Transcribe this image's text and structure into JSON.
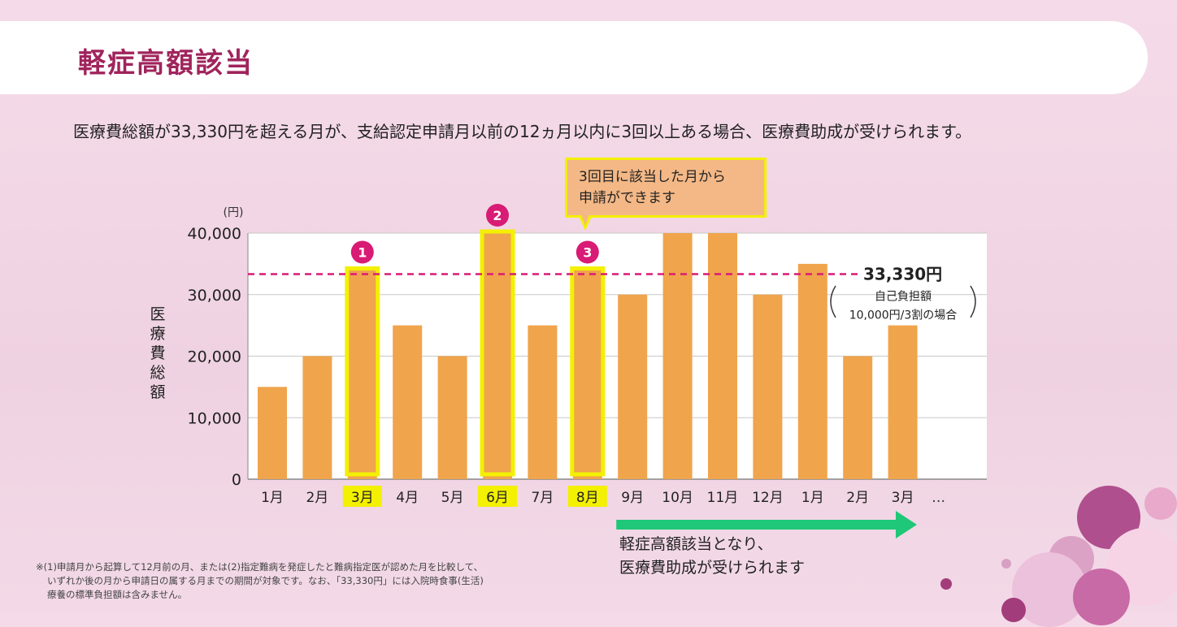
{
  "header": {
    "title": "軽症高額該当"
  },
  "description": "医療費総額が33,330円を超える月が、支給認定申請月以前の12ヵ月以内に3回以上ある場合、医療費助成が受けられます。",
  "callout": {
    "line1": "3回目に該当した月から",
    "line2": "申請ができます"
  },
  "arrow_caption": {
    "line1": "軽症高額該当となり、",
    "line2": "医療費助成が受けられます"
  },
  "footnote": {
    "line1": "※(1)申請月から起算して12月前の月、または(2)指定難病を発症したと難病指定医が認めた月を比較して、",
    "line2": "いずれか後の月から申請日の属する月までの期間が対象です。なお、「33,330円」には入院時食事(生活)",
    "line3": "療養の標準負担額は含みません。"
  },
  "chart_data": {
    "type": "bar",
    "unit_label": "(円)",
    "ylabel": "医療費総額",
    "ylim": [
      0,
      40000
    ],
    "yticks": [
      "0",
      "10,000",
      "20,000",
      "30,000",
      "40,000"
    ],
    "ytick_values": [
      0,
      10000,
      20000,
      30000,
      40000
    ],
    "categories": [
      "1月",
      "2月",
      "3月",
      "4月",
      "5月",
      "6月",
      "7月",
      "8月",
      "9月",
      "10月",
      "11月",
      "12月",
      "1月",
      "2月",
      "3月"
    ],
    "values": [
      15000,
      20000,
      34000,
      25000,
      20000,
      40000,
      25000,
      34000,
      30000,
      40000,
      40000,
      30000,
      35000,
      20000,
      25000
    ],
    "trailing_label": "…",
    "highlighted": [
      {
        "index": 2,
        "marker": "1"
      },
      {
        "index": 5,
        "marker": "2"
      },
      {
        "index": 7,
        "marker": "3"
      }
    ],
    "threshold": {
      "value": 33330,
      "label": "33,330円",
      "note_line1": "自己負担額",
      "note_line2": "10,000円/3割の場合"
    },
    "colors": {
      "bar": "#f0a44c",
      "highlight": "#f3f000",
      "threshold": "#d81b74",
      "marker": "#d81b74",
      "arrow": "#1ec878"
    },
    "grid": true
  }
}
